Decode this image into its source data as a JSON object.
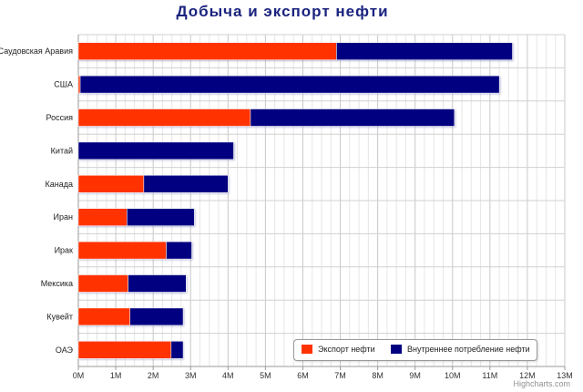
{
  "chart_data": {
    "type": "bar",
    "orientation": "horizontal",
    "stacked": true,
    "title": "Добыча и экспорт нефти",
    "categories": [
      "Саудовская Аравия",
      "США",
      "Россия",
      "Китай",
      "Канада",
      "Иран",
      "Ирак",
      "Мексика",
      "Кувейт",
      "ОАЭ"
    ],
    "series": [
      {
        "name": "Экспорт нефти",
        "color": "#ff3300",
        "values": [
          6.9,
          0.05,
          4.6,
          0,
          1.75,
          1.3,
          2.35,
          1.33,
          1.38,
          2.48
        ]
      },
      {
        "name": "Внутреннее потребление нефти",
        "color": "#000080",
        "values": [
          4.7,
          11.2,
          5.45,
          4.15,
          2.25,
          1.8,
          0.68,
          1.55,
          1.42,
          0.32
        ]
      }
    ],
    "x_ticks": [
      "0M",
      "1M",
      "2M",
      "3M",
      "4M",
      "5M",
      "6M",
      "7M",
      "8M",
      "9M",
      "10M",
      "11M",
      "12M",
      "13M"
    ],
    "xlim": [
      0,
      13
    ],
    "grid": true,
    "legend_position": "bottom-right"
  },
  "credits": "Highcharts.com"
}
